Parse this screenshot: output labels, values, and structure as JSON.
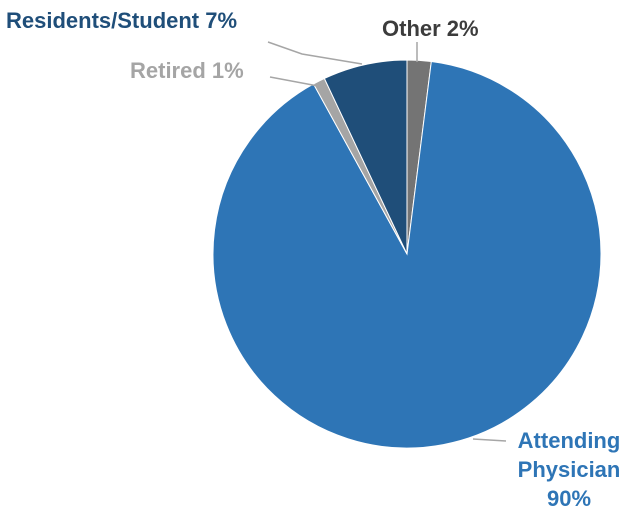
{
  "chart_data": {
    "type": "pie",
    "title": "",
    "slices": [
      {
        "name": "Other",
        "value": 2,
        "color": "#747474",
        "label_color": "#3c3c3c"
      },
      {
        "name": "Attending Physician",
        "value": 90,
        "color": "#2e75b6",
        "label_color": "#2e75b6"
      },
      {
        "name": "Retired",
        "value": 1,
        "color": "#a5a5a5",
        "label_color": "#a5a5a5"
      },
      {
        "name": "Residents/Student",
        "value": 7,
        "color": "#1f4e79",
        "label_color": "#1f4e79"
      }
    ],
    "legend": "none",
    "labels": {
      "other": "Other 2%",
      "attending_line1": "Attending",
      "attending_line2": "Physician",
      "attending_line3": "90%",
      "retired": "Retired 1%",
      "residents": "Residents/Student 7%"
    }
  }
}
